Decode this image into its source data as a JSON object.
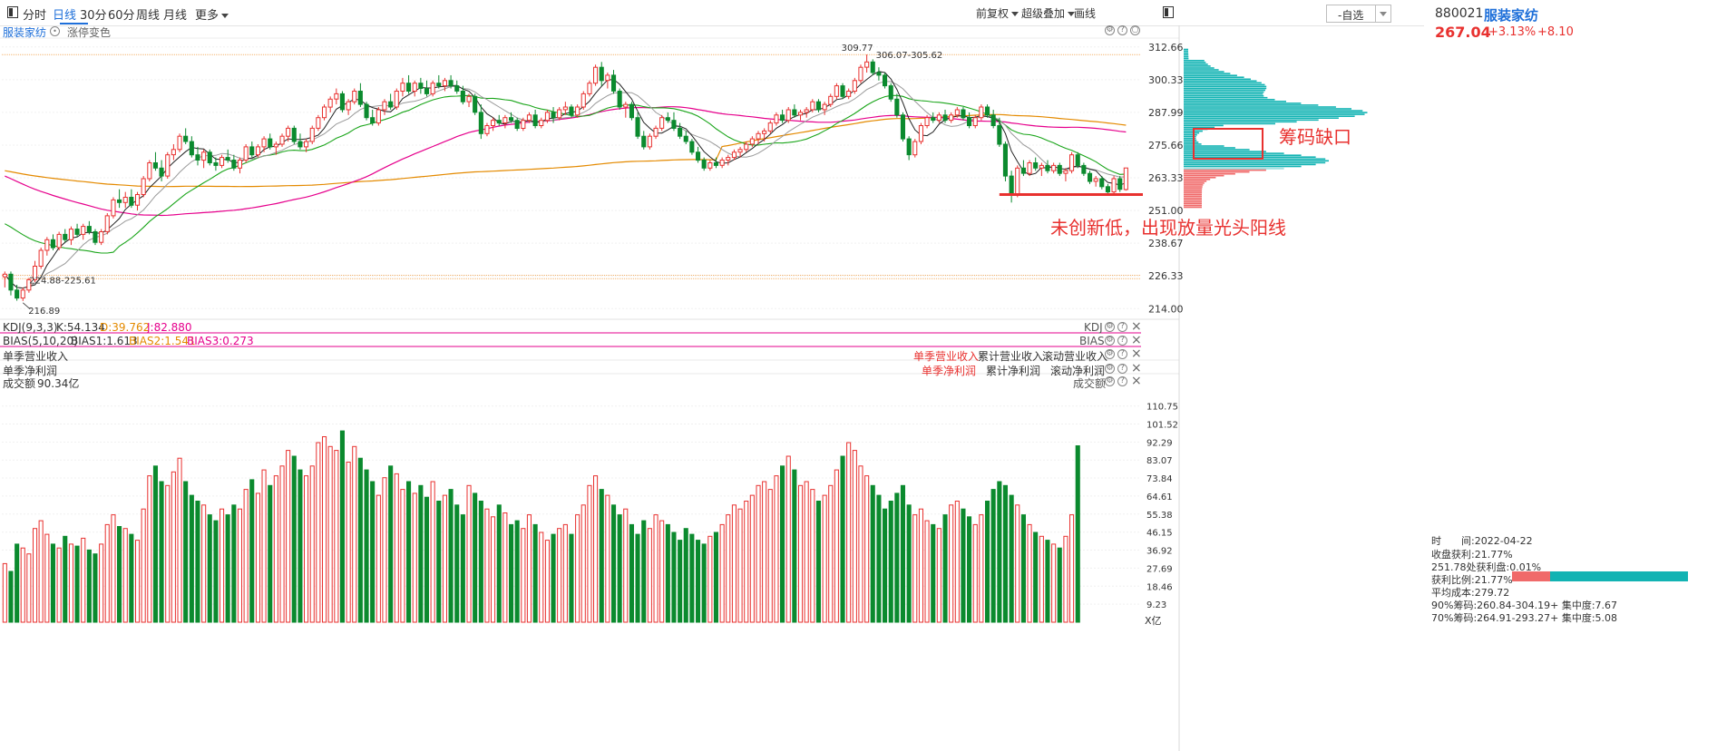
{
  "toolbar": {
    "tabs": [
      "分时",
      "日线",
      "30分",
      "60分",
      "周线",
      "月线",
      "更多"
    ],
    "active_tab": "日线",
    "right_items": [
      "前复权",
      "超级叠加",
      "画线"
    ],
    "select_value": "-自选"
  },
  "main_panel": {
    "title": "服装家纺",
    "sub": "涨停变色",
    "price_axis": [
      "312.66",
      "300.33",
      "287.99",
      "275.66",
      "263.33",
      "251.00",
      "238.67",
      "226.33",
      "214.00"
    ],
    "high_label": "309.77",
    "high_range": "306.07-305.62",
    "low_range": "224.88-225.61",
    "low_label": "216.89",
    "annotation_gap": "筹码缺口",
    "annotation_candle": "未创新低，出现放量光头阳线"
  },
  "kdj": {
    "name": "KDJ(9,3,3)",
    "k": "K:54.134",
    "d": "D:39.762",
    "j": "J:82.880",
    "right": "KDJ"
  },
  "bias": {
    "name": "BIAS(5,10,20)",
    "b1": "BIAS1:1.613",
    "b2": "BIAS2:1.541",
    "b3": "BIAS3:0.273",
    "right": "BIAS"
  },
  "revenue": {
    "name": "单季营业收入",
    "opts": [
      "单季营业收入",
      "累计营业收入",
      "滚动营业收入"
    ]
  },
  "profit": {
    "name": "单季净利润",
    "opts": [
      "单季净利润",
      "累计净利润",
      "滚动净利润"
    ]
  },
  "volume": {
    "name": "成交额",
    "value": "90.34亿",
    "right": "成交额",
    "axis": [
      "110.75",
      "101.52",
      "92.29",
      "83.07",
      "73.84",
      "64.61",
      "55.38",
      "46.15",
      "36.92",
      "27.69",
      "18.46",
      "9.23"
    ],
    "unit": "X亿"
  },
  "sidebar": {
    "code": "880021",
    "name": "服装家纺",
    "price": "267.04",
    "pct": "+3.13%",
    "change": "+8.10",
    "time_label": "时　　间:2022-04-22",
    "profit_label": "收盘获利:21.77%",
    "profit_at": "251.78处获利盘:0.01%",
    "ratio_label": "获利比例:21.77%",
    "avg_cost": "平均成本:279.72",
    "chips90": "90%筹码:260.84-304.19+ 集中度:7.67",
    "chips70": "70%筹码:264.91-293.27+ 集中度:5.08",
    "profit_ratio": 0.2177
  },
  "colors": {
    "up": "#e8312f",
    "down": "#0b8a2e",
    "ma5": "#222222",
    "ma10": "#9a9a9a",
    "ma20": "#1aa51a",
    "ma60": "#e6008c",
    "ma120": "#e48a00",
    "chip_teal": "#12b3b3",
    "chip_red": "#f06a6a",
    "accent": "#1e6fd9"
  },
  "chart_data": {
    "type": "candlestick",
    "y_range": [
      210,
      316
    ],
    "volume_range": [
      0,
      118
    ],
    "volume_unit": "亿",
    "candles": [
      [
        226.0,
        228.0,
        222.0,
        227.0
      ],
      [
        227.0,
        228.0,
        219.0,
        221.0
      ],
      [
        221.0,
        223.0,
        217.0,
        218.0
      ],
      [
        218.0,
        222.0,
        216.9,
        221.0
      ],
      [
        221.0,
        225.6,
        220.0,
        224.9
      ],
      [
        224.9,
        232.0,
        224.0,
        230.0
      ],
      [
        230.0,
        237.0,
        229.0,
        236.0
      ],
      [
        236.0,
        241.0,
        234.0,
        240.0
      ],
      [
        240.0,
        242.0,
        236.0,
        237.0
      ],
      [
        237.0,
        243.0,
        236.0,
        242.0
      ],
      [
        242.0,
        244.0,
        239.0,
        240.0
      ],
      [
        240.0,
        245.0,
        238.0,
        244.0
      ],
      [
        244.0,
        246.0,
        241.0,
        242.0
      ],
      [
        242.0,
        246.0,
        240.0,
        245.0
      ],
      [
        245.0,
        247.0,
        242.0,
        243.0
      ],
      [
        243.0,
        244.0,
        238.0,
        239.0
      ],
      [
        239.0,
        244.0,
        238.0,
        243.0
      ],
      [
        243.0,
        250.0,
        242.0,
        249.0
      ],
      [
        249.0,
        256.0,
        248.0,
        255.0
      ],
      [
        255.0,
        259.0,
        252.0,
        254.0
      ],
      [
        254.0,
        258.0,
        252.0,
        256.0
      ],
      [
        256.0,
        259.0,
        252.0,
        253.0
      ],
      [
        253.0,
        258.0,
        251.0,
        257.0
      ],
      [
        257.0,
        264.0,
        256.0,
        263.0
      ],
      [
        263.0,
        270.0,
        262.0,
        269.0
      ],
      [
        269.0,
        273.0,
        266.0,
        267.0
      ],
      [
        267.0,
        270.0,
        262.0,
        264.0
      ],
      [
        264.0,
        273.0,
        263.0,
        272.0
      ],
      [
        272.0,
        276.0,
        270.0,
        274.0
      ],
      [
        274.0,
        280.0,
        273.0,
        279.0
      ],
      [
        279.0,
        282.0,
        276.0,
        277.0
      ],
      [
        277.0,
        279.0,
        271.0,
        272.0
      ],
      [
        272.0,
        275.0,
        268.0,
        270.0
      ],
      [
        270.0,
        274.0,
        267.0,
        273.0
      ],
      [
        273.0,
        274.0,
        268.0,
        269.0
      ],
      [
        269.0,
        271.0,
        266.0,
        268.0
      ],
      [
        268.0,
        272.0,
        267.0,
        271.0
      ],
      [
        271.0,
        274.0,
        269.0,
        270.0
      ],
      [
        270.0,
        272.0,
        266.0,
        267.0
      ],
      [
        267.0,
        271.0,
        265.0,
        270.0
      ],
      [
        270.0,
        276.0,
        269.0,
        275.0
      ],
      [
        275.0,
        277.0,
        271.0,
        272.0
      ],
      [
        272.0,
        276.0,
        271.0,
        275.0
      ],
      [
        275.0,
        279.0,
        273.0,
        278.0
      ],
      [
        278.0,
        280.0,
        274.0,
        275.0
      ],
      [
        275.0,
        277.0,
        272.0,
        276.0
      ],
      [
        276.0,
        280.0,
        275.0,
        279.0
      ],
      [
        279.0,
        283.0,
        277.0,
        282.0
      ],
      [
        282.0,
        283.0,
        276.0,
        277.0
      ],
      [
        277.0,
        280.0,
        274.0,
        275.0
      ],
      [
        275.0,
        278.0,
        273.0,
        277.0
      ],
      [
        277.0,
        283.0,
        276.0,
        282.0
      ],
      [
        282.0,
        287.0,
        281.0,
        286.0
      ],
      [
        286.0,
        291.0,
        285.0,
        290.0
      ],
      [
        290.0,
        294.0,
        288.0,
        293.0
      ],
      [
        293.0,
        297.0,
        291.0,
        295.0
      ],
      [
        295.0,
        296.0,
        288.0,
        289.0
      ],
      [
        289.0,
        293.0,
        287.0,
        292.0
      ],
      [
        292.0,
        297.0,
        291.0,
        296.0
      ],
      [
        296.0,
        299.0,
        290.0,
        291.0
      ],
      [
        291.0,
        292.0,
        285.0,
        286.0
      ],
      [
        286.0,
        289.0,
        283.0,
        284.0
      ],
      [
        284.0,
        290.0,
        283.0,
        289.0
      ],
      [
        289.0,
        293.0,
        287.0,
        292.0
      ],
      [
        292.0,
        295.0,
        289.0,
        290.0
      ],
      [
        290.0,
        297.0,
        289.0,
        296.0
      ],
      [
        296.0,
        301.0,
        294.0,
        299.0
      ],
      [
        299.0,
        302.0,
        295.0,
        296.0
      ],
      [
        296.0,
        300.0,
        294.0,
        299.0
      ],
      [
        299.0,
        301.0,
        295.0,
        297.0
      ],
      [
        297.0,
        300.0,
        294.0,
        295.0
      ],
      [
        295.0,
        300.0,
        294.0,
        299.0
      ],
      [
        299.0,
        302.0,
        297.0,
        298.0
      ],
      [
        298.0,
        301.0,
        296.0,
        300.0
      ],
      [
        300.0,
        302.0,
        297.0,
        298.0
      ],
      [
        298.0,
        300.0,
        295.0,
        296.0
      ],
      [
        296.0,
        298.0,
        291.0,
        292.0
      ],
      [
        292.0,
        295.0,
        290.0,
        294.0
      ],
      [
        294.0,
        295.0,
        287.0,
        288.0
      ],
      [
        288.0,
        291.0,
        278.0,
        280.0
      ],
      [
        280.0,
        284.0,
        279.0,
        283.0
      ],
      [
        283.0,
        286.0,
        281.0,
        285.0
      ],
      [
        285.0,
        287.0,
        283.0,
        284.0
      ],
      [
        284.0,
        287.0,
        282.0,
        286.0
      ],
      [
        286.0,
        288.0,
        284.0,
        285.0
      ],
      [
        285.0,
        286.0,
        281.0,
        282.0
      ],
      [
        282.0,
        286.0,
        281.0,
        285.0
      ],
      [
        285.0,
        288.0,
        284.0,
        287.0
      ],
      [
        287.0,
        289.0,
        282.0,
        283.0
      ],
      [
        283.0,
        286.0,
        282.0,
        285.0
      ],
      [
        285.0,
        289.0,
        284.0,
        288.0
      ],
      [
        288.0,
        290.0,
        284.0,
        286.0
      ],
      [
        286.0,
        290.0,
        285.0,
        289.0
      ],
      [
        289.0,
        292.0,
        287.0,
        290.0
      ],
      [
        290.0,
        291.0,
        286.0,
        287.0
      ],
      [
        287.0,
        291.0,
        286.0,
        290.0
      ],
      [
        290.0,
        296.0,
        289.0,
        295.0
      ],
      [
        295.0,
        300.0,
        294.0,
        299.0
      ],
      [
        299.0,
        306.0,
        298.0,
        305.0
      ],
      [
        305.0,
        307.0,
        298.0,
        300.0
      ],
      [
        300.0,
        303.0,
        297.0,
        302.0
      ],
      [
        302.0,
        304.0,
        295.0,
        296.0
      ],
      [
        296.0,
        297.0,
        289.0,
        290.0
      ],
      [
        290.0,
        292.0,
        286.0,
        291.0
      ],
      [
        291.0,
        292.0,
        285.0,
        286.0
      ],
      [
        286.0,
        288.0,
        278.0,
        279.0
      ],
      [
        279.0,
        281.0,
        274.0,
        275.0
      ],
      [
        275.0,
        280.0,
        274.0,
        279.0
      ],
      [
        279.0,
        283.0,
        278.0,
        282.0
      ],
      [
        282.0,
        287.0,
        281.0,
        286.0
      ],
      [
        286.0,
        288.0,
        284.0,
        285.0
      ],
      [
        285.0,
        288.0,
        281.0,
        282.0
      ],
      [
        282.0,
        284.0,
        278.0,
        279.0
      ],
      [
        279.0,
        281.0,
        276.0,
        277.0
      ],
      [
        277.0,
        278.0,
        272.0,
        273.0
      ],
      [
        273.0,
        275.0,
        269.0,
        270.0
      ],
      [
        270.0,
        271.0,
        266.0,
        267.0
      ],
      [
        267.0,
        270.0,
        266.0,
        269.0
      ],
      [
        269.0,
        271.0,
        267.0,
        268.0
      ],
      [
        268.0,
        271.0,
        267.0,
        270.0
      ],
      [
        270.0,
        272.0,
        268.0,
        271.0
      ],
      [
        271.0,
        274.0,
        270.0,
        273.0
      ],
      [
        273.0,
        275.0,
        271.0,
        274.0
      ],
      [
        274.0,
        277.0,
        273.0,
        276.0
      ],
      [
        276.0,
        279.0,
        275.0,
        278.0
      ],
      [
        278.0,
        281.0,
        276.0,
        280.0
      ],
      [
        280.0,
        282.0,
        277.0,
        281.0
      ],
      [
        281.0,
        285.0,
        280.0,
        284.0
      ],
      [
        284.0,
        288.0,
        283.0,
        287.0
      ],
      [
        287.0,
        289.0,
        284.0,
        285.0
      ],
      [
        285.0,
        290.0,
        284.0,
        289.0
      ],
      [
        289.0,
        291.0,
        286.0,
        287.0
      ],
      [
        287.0,
        289.0,
        285.0,
        288.0
      ],
      [
        288.0,
        290.0,
        286.0,
        289.0
      ],
      [
        289.0,
        293.0,
        288.0,
        292.0
      ],
      [
        292.0,
        293.0,
        288.0,
        289.0
      ],
      [
        289.0,
        292.0,
        287.0,
        291.0
      ],
      [
        291.0,
        295.0,
        290.0,
        294.0
      ],
      [
        294.0,
        299.0,
        293.0,
        298.0
      ],
      [
        298.0,
        299.0,
        293.0,
        294.0
      ],
      [
        294.0,
        297.0,
        293.0,
        296.0
      ],
      [
        296.0,
        301.0,
        295.0,
        300.0
      ],
      [
        300.0,
        306.0,
        299.0,
        305.0
      ],
      [
        305.0,
        309.8,
        303.0,
        307.0
      ],
      [
        307.0,
        308.0,
        302.0,
        303.0
      ],
      [
        303.0,
        305.0,
        300.0,
        302.0
      ],
      [
        302.0,
        303.0,
        297.0,
        298.0
      ],
      [
        298.0,
        299.0,
        292.0,
        293.0
      ],
      [
        293.0,
        295.0,
        286.0,
        287.0
      ],
      [
        287.0,
        288.0,
        277.0,
        278.0
      ],
      [
        278.0,
        279.0,
        270.0,
        272.0
      ],
      [
        272.0,
        278.0,
        271.0,
        277.0
      ],
      [
        277.0,
        284.0,
        276.0,
        283.0
      ],
      [
        283.0,
        287.0,
        282.0,
        286.0
      ],
      [
        286.0,
        288.0,
        284.0,
        285.0
      ],
      [
        285.0,
        288.0,
        284.0,
        287.0
      ],
      [
        287.0,
        289.0,
        284.0,
        285.0
      ],
      [
        285.0,
        288.0,
        284.0,
        287.0
      ],
      [
        287.0,
        290.0,
        286.0,
        289.0
      ],
      [
        289.0,
        290.0,
        285.0,
        286.0
      ],
      [
        286.0,
        288.0,
        282.0,
        283.0
      ],
      [
        283.0,
        287.0,
        282.0,
        286.0
      ],
      [
        286.0,
        291.0,
        285.0,
        290.0
      ],
      [
        290.0,
        291.0,
        286.0,
        287.0
      ],
      [
        287.0,
        289.0,
        282.0,
        283.0
      ],
      [
        283.0,
        286.0,
        275.0,
        276.0
      ],
      [
        276.0,
        277.0,
        262.0,
        264.0
      ],
      [
        264.0,
        266.0,
        254.0,
        257.0
      ],
      [
        257.0,
        268.0,
        256.0,
        267.0
      ],
      [
        267.0,
        270.0,
        264.0,
        265.0
      ],
      [
        265.0,
        270.0,
        264.0,
        269.0
      ],
      [
        269.0,
        271.0,
        266.0,
        267.0
      ],
      [
        267.0,
        269.0,
        264.0,
        268.0
      ],
      [
        268.0,
        270.0,
        265.0,
        266.0
      ],
      [
        266.0,
        269.0,
        265.0,
        268.0
      ],
      [
        268.0,
        269.0,
        264.0,
        265.0
      ],
      [
        265.0,
        267.0,
        262.0,
        266.0
      ],
      [
        266.0,
        273.0,
        265.0,
        272.0
      ],
      [
        272.0,
        273.0,
        267.0,
        268.0
      ],
      [
        268.0,
        269.0,
        264.0,
        265.0
      ],
      [
        265.0,
        266.0,
        261.0,
        262.0
      ],
      [
        262.0,
        264.0,
        260.0,
        263.0
      ],
      [
        263.0,
        264.0,
        259.0,
        260.0
      ],
      [
        260.0,
        261.0,
        257.0,
        258.0
      ],
      [
        258.0,
        264.0,
        257.0,
        263.0
      ],
      [
        263.0,
        264.0,
        258.0,
        259.0
      ],
      [
        258.9,
        267.1,
        258.5,
        267.04
      ]
    ],
    "volumes": [
      30.0,
      26.0,
      40.0,
      38.0,
      35.0,
      48.0,
      52.0,
      45.0,
      40.0,
      38.0,
      44.0,
      40.0,
      39.0,
      43.0,
      37.0,
      35.0,
      40.0,
      50.0,
      55.0,
      49.0,
      48.0,
      45.0,
      42.0,
      58.0,
      75.0,
      80.0,
      72.0,
      70.0,
      77.0,
      84.0,
      72.0,
      65.0,
      62.0,
      60.0,
      55.0,
      52.0,
      58.0,
      55.0,
      60.0,
      58.0,
      68.0,
      73.0,
      66.0,
      78.0,
      70.0,
      75.0,
      80.0,
      88.0,
      85.0,
      78.0,
      75.0,
      80.0,
      92.0,
      95.0,
      90.0,
      88.0,
      98.0,
      82.0,
      90.0,
      84.0,
      78.0,
      72.0,
      65.0,
      74.0,
      80.0,
      76.0,
      68.0,
      72.0,
      66.0,
      70.0,
      64.0,
      72.0,
      62.0,
      65.0,
      68.0,
      60.0,
      55.0,
      70.0,
      66.0,
      62.0,
      58.0,
      54.0,
      60.0,
      56.0,
      50.0,
      52.0,
      48.0,
      55.0,
      50.0,
      46.0,
      42.0,
      45.0,
      48.0,
      50.0,
      45.0,
      55.0,
      60.0,
      70.0,
      75.0,
      68.0,
      65.0,
      60.0,
      55.0,
      58.0,
      50.0,
      45.0,
      52.0,
      48.0,
      55.0,
      52.0,
      50.0,
      46.0,
      42.0,
      48.0,
      45.0,
      42.0,
      40.0,
      44.0,
      46.0,
      50.0,
      55.0,
      60.0,
      58.0,
      62.0,
      65.0,
      70.0,
      72.0,
      68.0,
      75.0,
      80.0,
      85.0,
      78.0,
      70.0,
      72.0,
      68.0,
      62.0,
      65.0,
      70.0,
      78.0,
      85.0,
      92.0,
      88.0,
      80.0,
      75.0,
      70.0,
      65.0,
      58.0,
      62.0,
      66.0,
      70.0,
      60.0,
      55.0,
      58.0,
      52.0,
      50.0,
      48.0,
      55.0,
      60.0,
      62.0,
      58.0,
      54.0,
      50.0,
      55.0,
      62.0,
      68.0,
      72.0,
      70.0,
      65.0,
      60.0,
      55.0,
      50.0,
      46.0,
      44.0,
      42.0,
      40.0,
      38.0,
      44.0,
      55.0,
      90.34
    ]
  }
}
